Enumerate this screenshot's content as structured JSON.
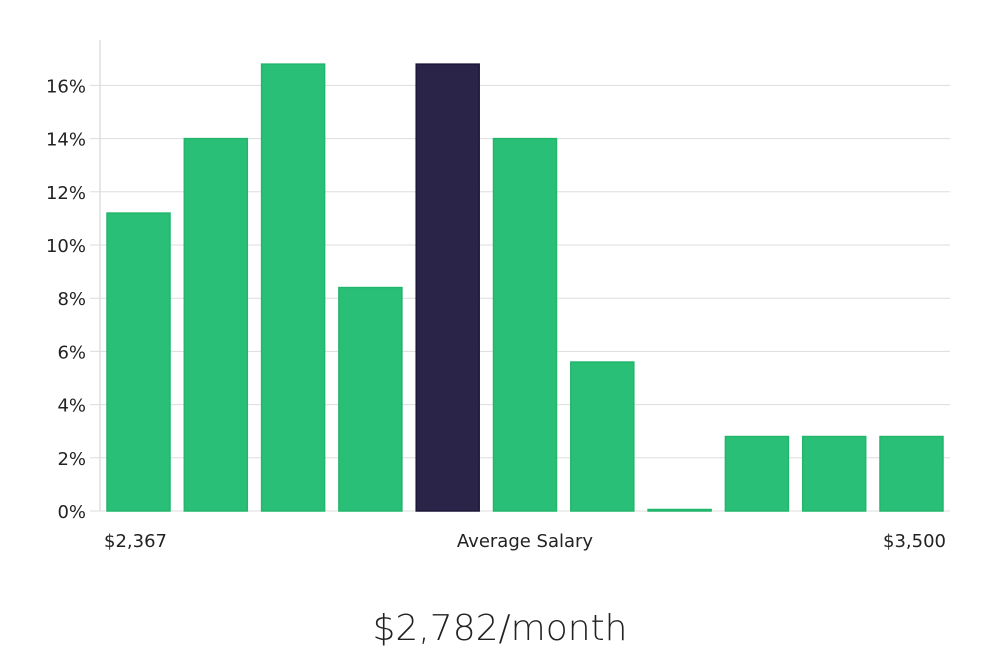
{
  "chart_data": {
    "type": "bar",
    "title": "$2,782/month",
    "xlabel": "Average Salary",
    "x_min_label": "$2,367",
    "x_max_label": "$3,500",
    "ylabel": "",
    "ylim": [
      0,
      17.6
    ],
    "yticks": [
      0,
      2,
      4,
      6,
      8,
      10,
      12,
      14,
      16
    ],
    "ytick_labels": [
      "0%",
      "2%",
      "4%",
      "6%",
      "8%",
      "10%",
      "12%",
      "14%",
      "16%"
    ],
    "grid": true,
    "values": [
      11.2,
      14.0,
      16.8,
      8.4,
      16.8,
      14.0,
      5.6,
      0,
      2.8,
      2.8,
      2.8
    ],
    "highlight_index": 4,
    "colors": {
      "bar": "#2abf77",
      "highlight": "#2a2548",
      "grid": "#dddddd",
      "axis": "#cccccc"
    }
  }
}
